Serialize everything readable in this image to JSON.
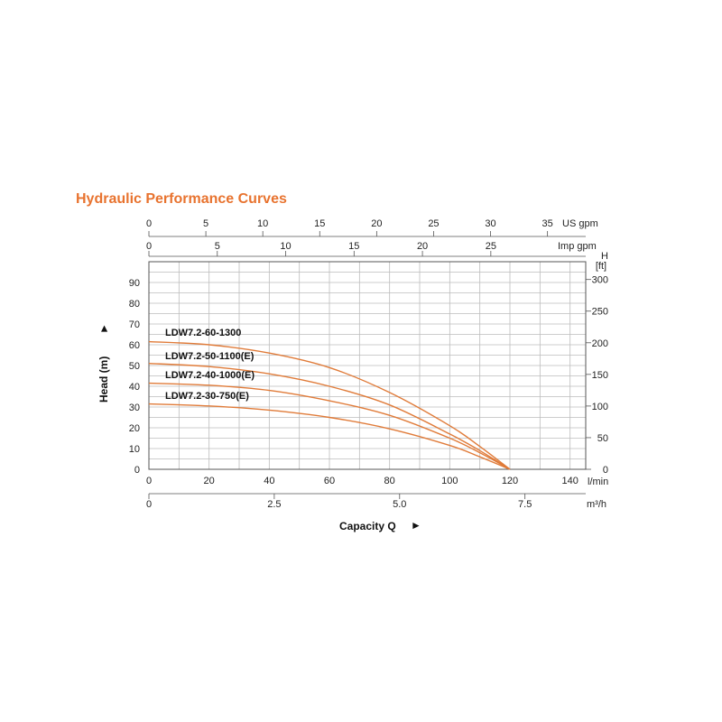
{
  "chart_data": {
    "type": "line",
    "title": "Hydraulic Performance Curves",
    "title_color": "#e8732f",
    "curve_color": "#e07b39",
    "grid": true,
    "xlabel": "Capacity Q",
    "ylabel": "Head (m)",
    "axis_arrow": "►",
    "x_unit": "l/min",
    "xlim": [
      0,
      145
    ],
    "ylim": [
      0,
      95
    ],
    "x_ticks": [
      "0",
      "20",
      "40",
      "60",
      "80",
      "100",
      "120",
      "140"
    ],
    "y_ticks": [
      "0",
      "10",
      "20",
      "30",
      "40",
      "50",
      "60",
      "70",
      "80",
      "90"
    ],
    "secondary_axes": {
      "us_gpm": {
        "unit": "US gpm",
        "ticks": [
          "0",
          "5",
          "10",
          "15",
          "20",
          "25",
          "30",
          "35"
        ]
      },
      "imp_gpm": {
        "unit": "Imp gpm",
        "ticks": [
          "0",
          "5",
          "10",
          "15",
          "20",
          "25"
        ]
      },
      "m3h": {
        "unit": "m³/h",
        "ticks": [
          "0",
          "2.5",
          "5.0",
          "7.5"
        ]
      },
      "head_ft": {
        "unit_line1": "H",
        "unit_line2": "[ft]",
        "ticks": [
          "0",
          "50",
          "100",
          "150",
          "200",
          "250",
          "300"
        ]
      }
    },
    "series": [
      {
        "name": "LDW7.2-60-1300",
        "x": [
          0,
          20,
          40,
          60,
          80,
          100,
          110,
          120
        ],
        "y": [
          61.5,
          60,
          56,
          49,
          37,
          21,
          11,
          0
        ]
      },
      {
        "name": "LDW7.2-50-1100(E)",
        "x": [
          0,
          20,
          40,
          60,
          80,
          100,
          110,
          120
        ],
        "y": [
          51,
          49.5,
          46,
          40,
          31,
          17,
          9,
          0
        ]
      },
      {
        "name": "LDW7.2-40-1000(E)",
        "x": [
          0,
          20,
          40,
          60,
          80,
          100,
          110,
          120
        ],
        "y": [
          41.5,
          40.5,
          38,
          33,
          26,
          15,
          8,
          0
        ]
      },
      {
        "name": "LDW7.2-30-750(E)",
        "x": [
          0,
          20,
          40,
          60,
          80,
          100,
          110,
          120
        ],
        "y": [
          31.5,
          30.5,
          28.5,
          25,
          19.5,
          11.5,
          6,
          0
        ]
      }
    ]
  }
}
